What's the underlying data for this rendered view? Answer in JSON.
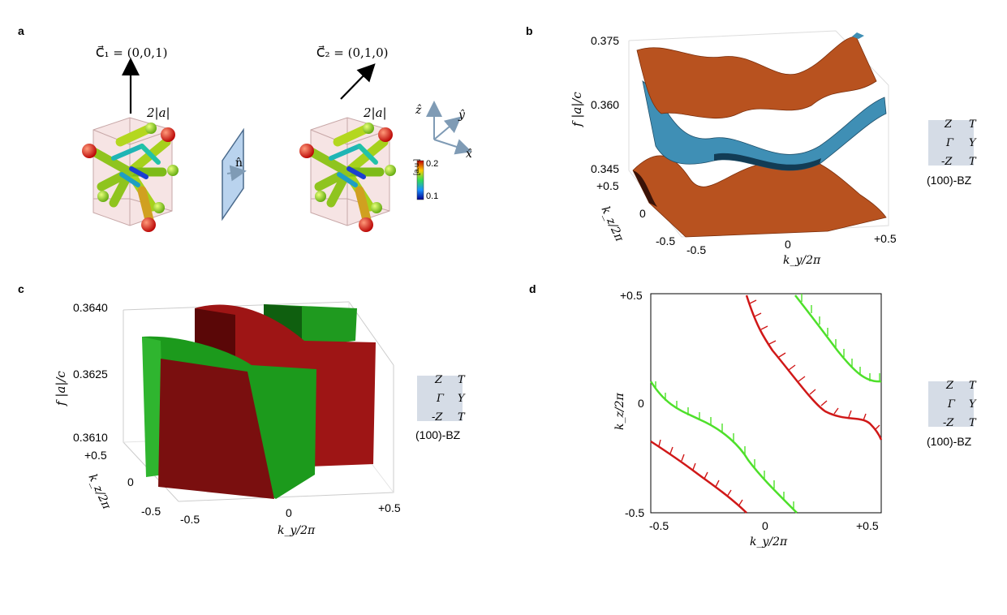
{
  "panels": {
    "a": {
      "letter": "a",
      "c1": "C⃗₁ = (0,0,1)",
      "c2": "C⃗₂ = (0,1,0)",
      "size_left": "2|a|",
      "size_right": "2|a|",
      "normal": "n̂",
      "axes": {
        "z": "ẑ",
        "y": "ŷ",
        "x": "x̂"
      },
      "colorbar": {
        "max": "0.2",
        "min": "0.1",
        "unit": "[a.u.]"
      }
    },
    "b": {
      "letter": "b",
      "ylabel": "f |a|/c",
      "yticks": [
        "0.375",
        "0.360",
        "0.345"
      ],
      "kz_label": "k_z/2π",
      "kz_ticks": [
        "+0.5",
        "0",
        "-0.5"
      ],
      "ky_label": "k_y/2π",
      "ky_ticks": [
        "-0.5",
        "0",
        "+0.5"
      ]
    },
    "c": {
      "letter": "c",
      "ylabel": "f |a|/c",
      "yticks": [
        "0.3640",
        "0.3625",
        "0.3610"
      ],
      "kz_label": "k_z/2π",
      "kz_ticks": [
        "+0.5",
        "0",
        "-0.5"
      ],
      "ky_label": "k_y/2π",
      "ky_ticks": [
        "-0.5",
        "0",
        "+0.5"
      ]
    },
    "d": {
      "letter": "d",
      "kz_label": "k_z/2π",
      "kz_ticks": [
        "+0.5",
        "0",
        "-0.5"
      ],
      "ky_label": "k_y/2π",
      "ky_ticks": [
        "-0.5",
        "0",
        "+0.5"
      ]
    }
  },
  "bz": {
    "z": "Z",
    "t_top": "T",
    "gamma": "Γ",
    "y": "Y",
    "mz": "-Z",
    "t_bottom": "T",
    "label": "(100)-BZ"
  },
  "colors": {
    "surface_orange": "#b8521f",
    "surface_blue": "#3f8fb5",
    "surface_green": "#1c9a1c",
    "surface_red": "#7a0f0f",
    "line_red": "#d01818",
    "line_green": "#4ee02a",
    "bz_fill": "#d5dce6"
  }
}
